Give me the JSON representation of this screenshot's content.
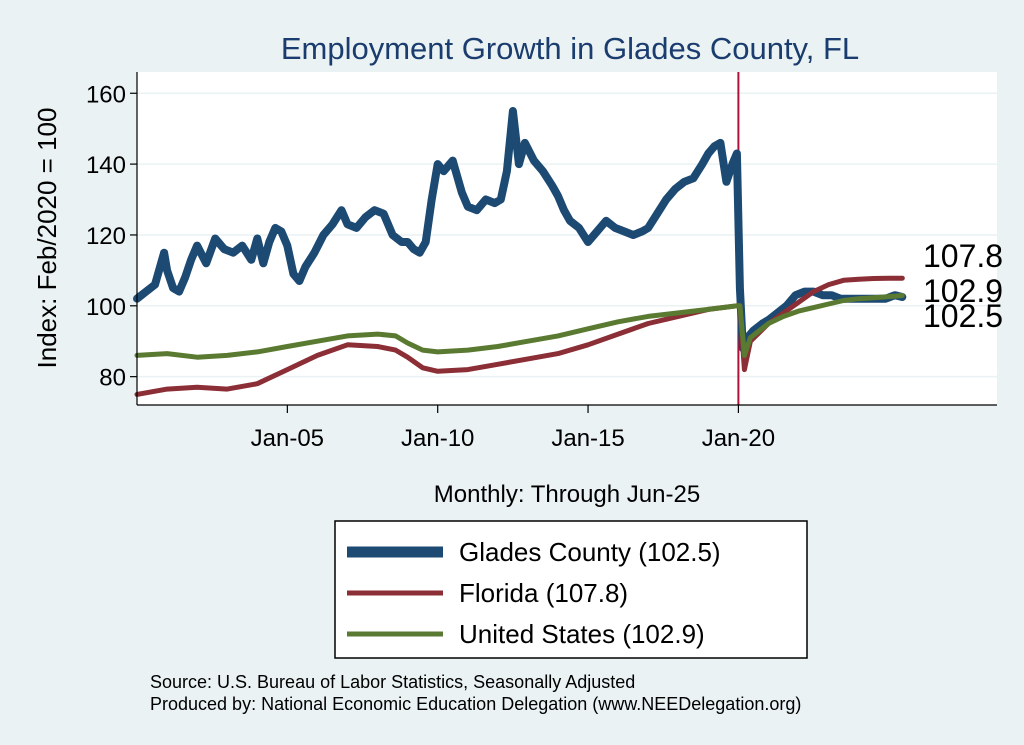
{
  "chart_data": {
    "type": "line",
    "title": "Employment Growth in Glades  County, FL",
    "ylabel": "Index: Feb/2020 = 100",
    "xlabel": "Monthly: Through Jun-25",
    "ylim": [
      72,
      166
    ],
    "xlim": [
      2000,
      2028.6
    ],
    "yticks": [
      80,
      100,
      120,
      140,
      160
    ],
    "xticks": [
      {
        "label": "Jan-05",
        "x": 2005.0
      },
      {
        "label": "Jan-10",
        "x": 2010.0
      },
      {
        "label": "Jan-15",
        "x": 2015.0
      },
      {
        "label": "Jan-20",
        "x": 2020.0
      }
    ],
    "reference_line": {
      "x": 2020.0,
      "color": "#b0123a"
    },
    "series": [
      {
        "name": "Glades  County",
        "legend": "Glades  County (102.5)",
        "end_label": "102.5",
        "color": "#1c4a73",
        "x": [
          2000.0,
          2000.3,
          2000.6,
          2000.9,
          2001.0,
          2001.2,
          2001.4,
          2001.6,
          2001.8,
          2002.0,
          2002.3,
          2002.6,
          2002.9,
          2003.2,
          2003.5,
          2003.8,
          2004.0,
          2004.2,
          2004.4,
          2004.6,
          2004.8,
          2005.0,
          2005.2,
          2005.4,
          2005.6,
          2005.9,
          2006.2,
          2006.5,
          2006.8,
          2007.0,
          2007.3,
          2007.6,
          2007.9,
          2008.2,
          2008.5,
          2008.8,
          2009.0,
          2009.2,
          2009.4,
          2009.6,
          2009.8,
          2010.0,
          2010.2,
          2010.5,
          2010.8,
          2011.0,
          2011.3,
          2011.6,
          2011.9,
          2012.1,
          2012.3,
          2012.5,
          2012.7,
          2012.9,
          2013.2,
          2013.5,
          2013.8,
          2014.0,
          2014.2,
          2014.4,
          2014.7,
          2015.0,
          2015.3,
          2015.6,
          2015.9,
          2016.2,
          2016.5,
          2016.8,
          2017.0,
          2017.3,
          2017.6,
          2017.9,
          2018.2,
          2018.5,
          2018.8,
          2019.0,
          2019.2,
          2019.4,
          2019.6,
          2019.8,
          2019.95,
          2020.05,
          2020.15,
          2020.3,
          2020.5,
          2020.8,
          2021.0,
          2021.3,
          2021.6,
          2021.9,
          2022.2,
          2022.5,
          2022.8,
          2023.1,
          2023.4,
          2023.7,
          2024.0,
          2024.3,
          2024.6,
          2024.9,
          2025.2,
          2025.45
        ],
        "values": [
          102,
          104,
          106,
          115,
          110,
          105,
          104,
          108,
          113,
          117,
          112,
          119,
          116,
          115,
          117,
          113,
          119,
          112,
          118,
          122,
          121,
          117,
          109,
          107,
          111,
          115,
          120,
          123,
          127,
          123,
          122,
          125,
          127,
          126,
          120,
          118,
          118,
          116,
          115,
          118,
          130,
          140,
          138,
          141,
          132,
          128,
          127,
          130,
          129,
          130,
          138,
          155,
          140,
          146,
          141,
          138,
          134,
          131,
          127,
          124,
          122,
          118,
          121,
          124,
          122,
          121,
          120,
          121,
          122,
          126,
          130,
          133,
          135,
          136,
          140,
          143,
          145,
          146,
          135,
          140,
          143,
          105,
          88,
          91,
          93,
          95,
          96,
          98,
          100,
          103,
          104,
          104,
          103,
          103,
          102,
          102,
          102,
          102,
          102,
          102,
          103,
          102.5
        ]
      },
      {
        "name": "Florida",
        "legend": "Florida (107.8)",
        "end_label": "107.8",
        "color": "#8b2e35",
        "x": [
          2000.0,
          2001.0,
          2002.0,
          2003.0,
          2004.0,
          2005.0,
          2006.0,
          2007.0,
          2008.0,
          2008.6,
          2009.0,
          2009.5,
          2010.0,
          2011.0,
          2012.0,
          2013.0,
          2014.0,
          2015.0,
          2016.0,
          2017.0,
          2018.0,
          2019.0,
          2019.95,
          2020.05,
          2020.2,
          2020.4,
          2020.7,
          2021.0,
          2021.5,
          2022.0,
          2022.5,
          2023.0,
          2023.5,
          2024.0,
          2024.5,
          2025.0,
          2025.45
        ],
        "values": [
          75,
          76.5,
          77,
          76.5,
          78,
          82,
          86,
          89,
          88.5,
          87.5,
          85.5,
          82.5,
          81.5,
          82,
          83.5,
          85,
          86.5,
          89,
          92,
          95,
          97,
          99,
          100,
          100,
          82,
          90,
          92.5,
          95,
          98,
          101,
          104,
          106,
          107.2,
          107.5,
          107.7,
          107.8,
          107.8
        ]
      },
      {
        "name": "United States",
        "legend": "United States (102.9)",
        "end_label": "102.9",
        "color": "#5a7a32",
        "x": [
          2000.0,
          2001.0,
          2002.0,
          2003.0,
          2004.0,
          2005.0,
          2006.0,
          2007.0,
          2008.0,
          2008.6,
          2009.0,
          2009.5,
          2010.0,
          2011.0,
          2012.0,
          2013.0,
          2014.0,
          2015.0,
          2016.0,
          2017.0,
          2018.0,
          2019.0,
          2019.95,
          2020.05,
          2020.2,
          2020.4,
          2020.7,
          2021.0,
          2021.5,
          2022.0,
          2022.5,
          2023.0,
          2023.5,
          2024.0,
          2024.5,
          2025.0,
          2025.45
        ],
        "values": [
          86,
          86.5,
          85.5,
          86,
          87,
          88.5,
          90,
          91.5,
          92,
          91.5,
          89.5,
          87.5,
          87,
          87.5,
          88.5,
          90,
          91.5,
          93.5,
          95.5,
          97,
          98,
          99,
          100,
          100,
          86,
          91,
          93,
          95,
          97,
          98.5,
          99.5,
          100.5,
          101.5,
          102,
          102.3,
          102.6,
          102.9
        ]
      }
    ],
    "end_label_order": [
      "107.8",
      "102.9",
      "102.5"
    ]
  },
  "source": {
    "line1": "Source: U.S. Bureau of Labor Statistics, Seasonally Adjusted",
    "line2": "Produced by: National Economic Education Delegation (www.NEEDelegation.org)"
  }
}
